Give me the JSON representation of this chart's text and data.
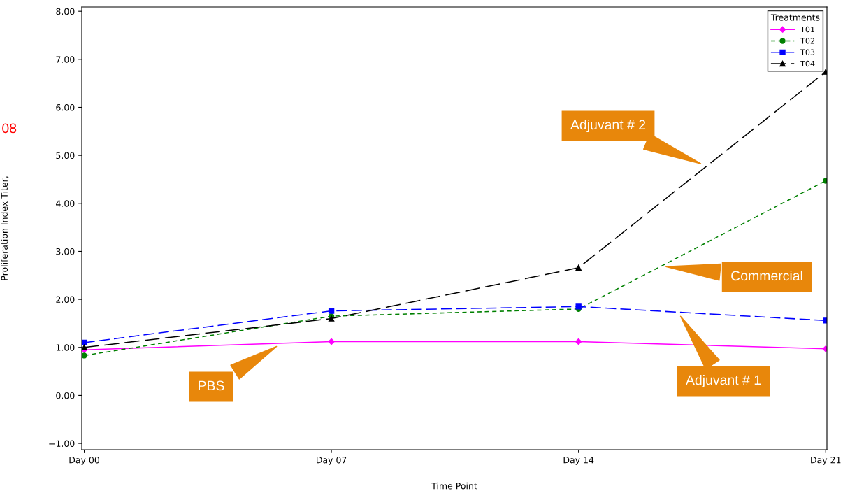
{
  "chart_data": {
    "type": "line",
    "xlabel": "Time Point",
    "ylabel": "Proliferation Index Titer,",
    "legend_title": "Treatments",
    "categories": [
      "Day 00",
      "Day 07",
      "Day 14",
      "Day 21"
    ],
    "series": [
      {
        "name": "T01",
        "color": "#ff00ff",
        "values": [
          0.95,
          1.12,
          1.12,
          0.97
        ],
        "marker": "diamond",
        "line_style": "solid"
      },
      {
        "name": "T02",
        "color": "#008000",
        "values": [
          0.83,
          1.65,
          1.8,
          4.47
        ],
        "marker": "circle",
        "line_style": "dashed"
      },
      {
        "name": "T03",
        "color": "#0000ff",
        "values": [
          1.1,
          1.76,
          1.85,
          1.56
        ],
        "marker": "square",
        "line_style": "dashed"
      },
      {
        "name": "T04",
        "color": "#000000",
        "values": [
          1.0,
          1.6,
          2.66,
          6.74
        ],
        "marker": "triangle",
        "line_style": "dashed"
      }
    ],
    "ylim": [
      -1.13,
      8.09
    ],
    "yticks": [
      {
        "value": -1,
        "label": "−1.00"
      },
      {
        "value": 0,
        "label": "0.00"
      },
      {
        "value": 1,
        "label": "1.00"
      },
      {
        "value": 2,
        "label": "2.00"
      },
      {
        "value": 3,
        "label": "3.00"
      },
      {
        "value": 4,
        "label": "4.00"
      },
      {
        "value": 5,
        "label": "5.00"
      },
      {
        "value": 6,
        "label": "6.00"
      },
      {
        "value": 7,
        "label": "7.00"
      },
      {
        "value": 8,
        "label": "8.00"
      }
    ],
    "grid": false,
    "legend": "top right",
    "annotations": [
      "Adjuvant # 2",
      "Commercial",
      "Adjuvant # 1",
      "PBS",
      "08"
    ]
  }
}
